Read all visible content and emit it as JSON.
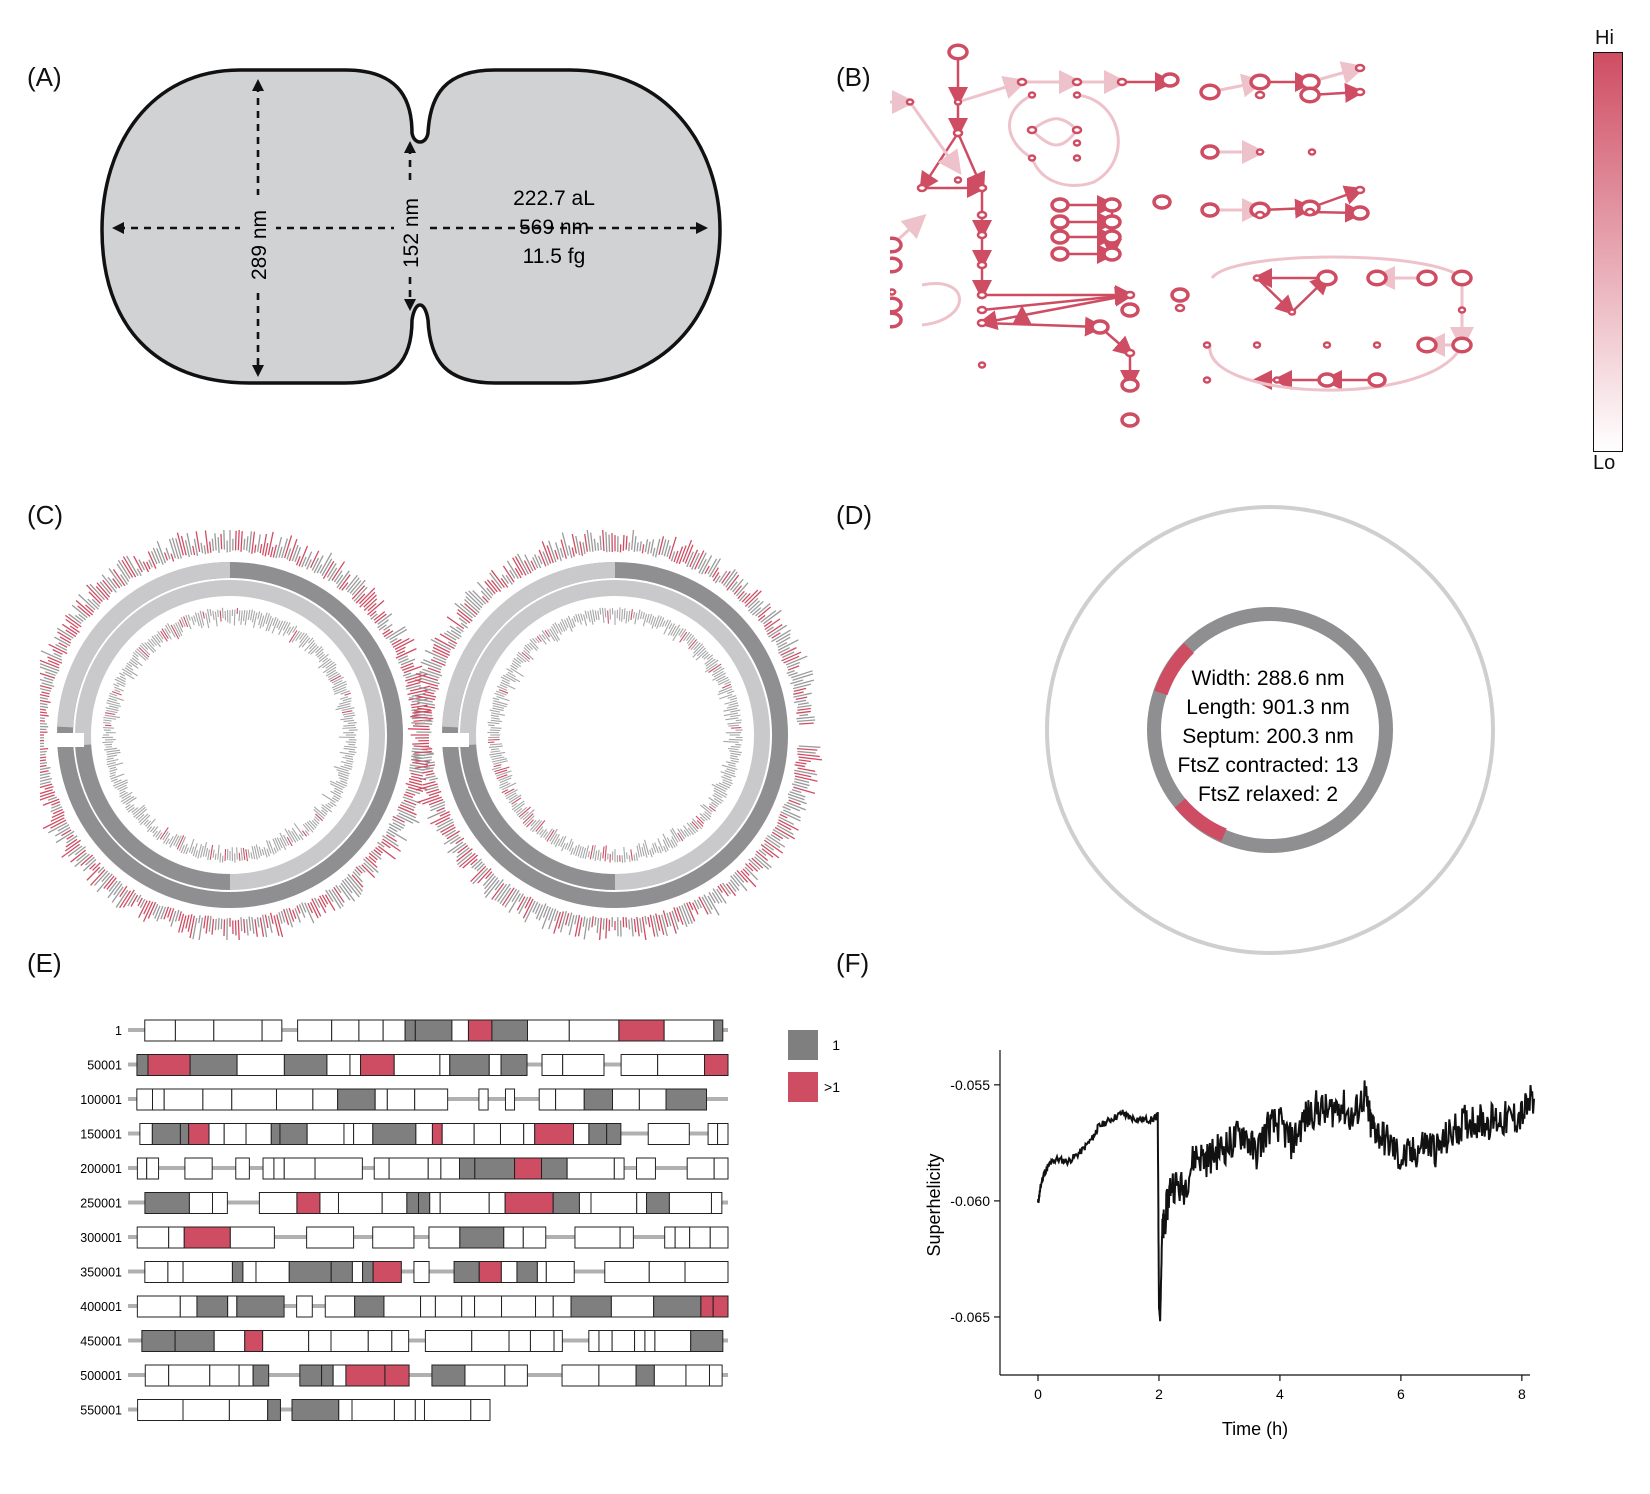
{
  "panels": {
    "a": "(A)",
    "b": "(B)",
    "c": "(C)",
    "d": "(D)",
    "e": "(E)",
    "f": "(F)"
  },
  "cell_shape": {
    "width_label": "289 nm",
    "septum_label": "152 nm",
    "volume": "222.7 aL",
    "length": "569 nm",
    "mass": "11.5 fg"
  },
  "network": {
    "scale_hi": "Hi",
    "scale_lo": "Lo",
    "color_hi": "#cf4d63",
    "color_lo": "#ffffff"
  },
  "ring_info": {
    "lines": [
      "Width: 288.6 nm",
      "Length: 901.3 nm",
      "Septum: 200.3 nm",
      "FtsZ contracted: 13",
      "FtsZ relaxed: 2"
    ]
  },
  "genome_map": {
    "row_labels": [
      "1",
      "50001",
      "100001",
      "150001",
      "200001",
      "250001",
      "300001",
      "350001",
      "400001",
      "450001",
      "500001",
      "550001"
    ],
    "legend": [
      {
        "label": "1",
        "color": "#7f7f7f"
      },
      {
        "label": ">1",
        "color": "#cf4d63"
      }
    ]
  },
  "chart_data": {
    "type": "line",
    "title": "",
    "xlabel": "Time (h)",
    "ylabel": "Superhelicity",
    "xlim": [
      0,
      8.3
    ],
    "ylim": [
      -0.0675,
      -0.0535
    ],
    "xticks": [
      0,
      2,
      4,
      6,
      8
    ],
    "yticks": [
      -0.055,
      -0.06,
      -0.065
    ],
    "ytick_labels": [
      "-0.055",
      "-0.060",
      "-0.065"
    ],
    "series": [
      {
        "x": [
          0,
          0.05,
          0.1,
          0.2,
          0.3,
          0.5,
          0.7,
          0.9,
          1.0,
          1.2,
          1.4,
          1.5,
          1.7,
          1.9,
          1.98,
          2.0,
          2.02,
          2.05,
          2.1,
          2.2,
          2.4,
          2.6,
          2.8,
          3.0,
          3.2,
          3.4,
          3.6,
          3.8,
          4.0,
          4.2,
          4.4,
          4.6,
          4.8,
          5.0,
          5.2,
          5.4,
          5.5,
          5.6,
          5.8,
          6.0,
          6.2,
          6.4,
          6.6,
          6.8,
          7.0,
          7.2,
          7.4,
          7.6,
          7.8,
          8.0,
          8.2
        ],
        "y": [
          -0.0601,
          -0.0593,
          -0.0588,
          -0.0584,
          -0.0582,
          -0.0583,
          -0.0579,
          -0.0573,
          -0.0568,
          -0.0565,
          -0.0562,
          -0.0564,
          -0.0565,
          -0.0565,
          -0.0563,
          -0.0645,
          -0.0652,
          -0.0615,
          -0.0608,
          -0.0592,
          -0.0595,
          -0.058,
          -0.0582,
          -0.0578,
          -0.0575,
          -0.057,
          -0.058,
          -0.0568,
          -0.0567,
          -0.0575,
          -0.0565,
          -0.056,
          -0.0562,
          -0.0558,
          -0.0565,
          -0.0554,
          -0.0567,
          -0.057,
          -0.0575,
          -0.0582,
          -0.058,
          -0.0575,
          -0.0578,
          -0.0572,
          -0.0567,
          -0.0565,
          -0.0566,
          -0.0565,
          -0.0565,
          -0.0563,
          -0.0556
        ]
      }
    ]
  }
}
